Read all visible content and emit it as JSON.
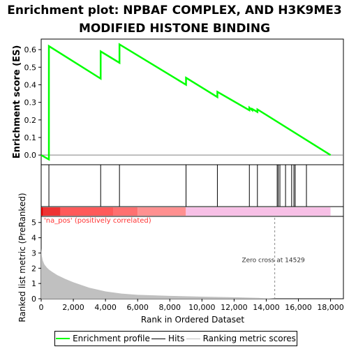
{
  "title_lines": [
    "Enrichment plot: NPBAF COMPLEX, AND H3K9ME3",
    "MODIFIED HISTONE BINDING"
  ],
  "colors": {
    "enrichment": "#00ff00",
    "hits": "#000000",
    "metric": "#c0c0c0",
    "pos_label": "#ff3333",
    "zero_cross_line": "#888888",
    "heat_neg": "#f7c0e6"
  },
  "chart_data": {
    "type": "line",
    "x_ticks": [
      "0",
      "2,000",
      "4,000",
      "6,000",
      "8,000",
      "10,000",
      "12,000",
      "14,000",
      "16,000",
      "18,000"
    ],
    "x_tick_values": [
      0,
      2000,
      4000,
      6000,
      8000,
      10000,
      12000,
      14000,
      16000,
      18000
    ],
    "xlim": [
      0,
      18800
    ],
    "xlabel": "Rank in Ordered Dataset",
    "es_panel": {
      "ylabel": "Enrichment score (ES)",
      "y_ticks": [
        "0.0",
        "0.1",
        "0.2",
        "0.3",
        "0.4",
        "0.5",
        "0.6"
      ],
      "y_tick_values": [
        0.0,
        0.1,
        0.2,
        0.3,
        0.4,
        0.5,
        0.6
      ],
      "ylim": [
        -0.055,
        0.66
      ],
      "series": [
        {
          "name": "Enrichment profile",
          "x": [
            0,
            480,
            480,
            3700,
            3700,
            4870,
            4870,
            9010,
            9010,
            10960,
            10960,
            12950,
            12950,
            13130,
            13130,
            13450,
            13450,
            18000
          ],
          "y": [
            0.0,
            -0.025,
            0.62,
            0.435,
            0.59,
            0.525,
            0.63,
            0.4,
            0.44,
            0.33,
            0.36,
            0.255,
            0.27,
            0.255,
            0.262,
            0.245,
            0.26,
            0.0
          ]
        }
      ]
    },
    "hits": {
      "name": "Hits",
      "positions": [
        480,
        3700,
        4870,
        9010,
        10960,
        12950,
        13450,
        14680,
        14750,
        14850,
        15200,
        15580,
        15720,
        15800,
        16500
      ]
    },
    "metric_panel": {
      "name": "Ranking metric scores",
      "ylabel": "Ranked list metric (PreRanked)",
      "y_ticks": [
        "0",
        "1",
        "2",
        "3",
        "4",
        "5"
      ],
      "y_tick_values": [
        0,
        1,
        2,
        3,
        4,
        5
      ],
      "ylim": [
        0,
        5.4
      ],
      "x": [
        0,
        40,
        100,
        200,
        350,
        500,
        700,
        1000,
        1500,
        2000,
        3000,
        4000,
        5000,
        6000,
        8000,
        10000,
        12000,
        13500,
        14529,
        15500,
        17000,
        18000
      ],
      "y": [
        3.3,
        2.8,
        2.5,
        2.25,
        2.05,
        1.9,
        1.75,
        1.55,
        1.3,
        1.08,
        0.72,
        0.48,
        0.34,
        0.26,
        0.19,
        0.14,
        0.1,
        0.06,
        0.0,
        0.0,
        0.0,
        0.0
      ],
      "pos_label": "'na_pos' (positively correlated)",
      "zero_cross_label": "Zero cross at 14529",
      "zero_cross": 14529
    }
  },
  "legend": {
    "items": [
      {
        "label": "Enrichment profile"
      },
      {
        "label": "Hits"
      },
      {
        "label": "Ranking metric scores"
      }
    ]
  }
}
